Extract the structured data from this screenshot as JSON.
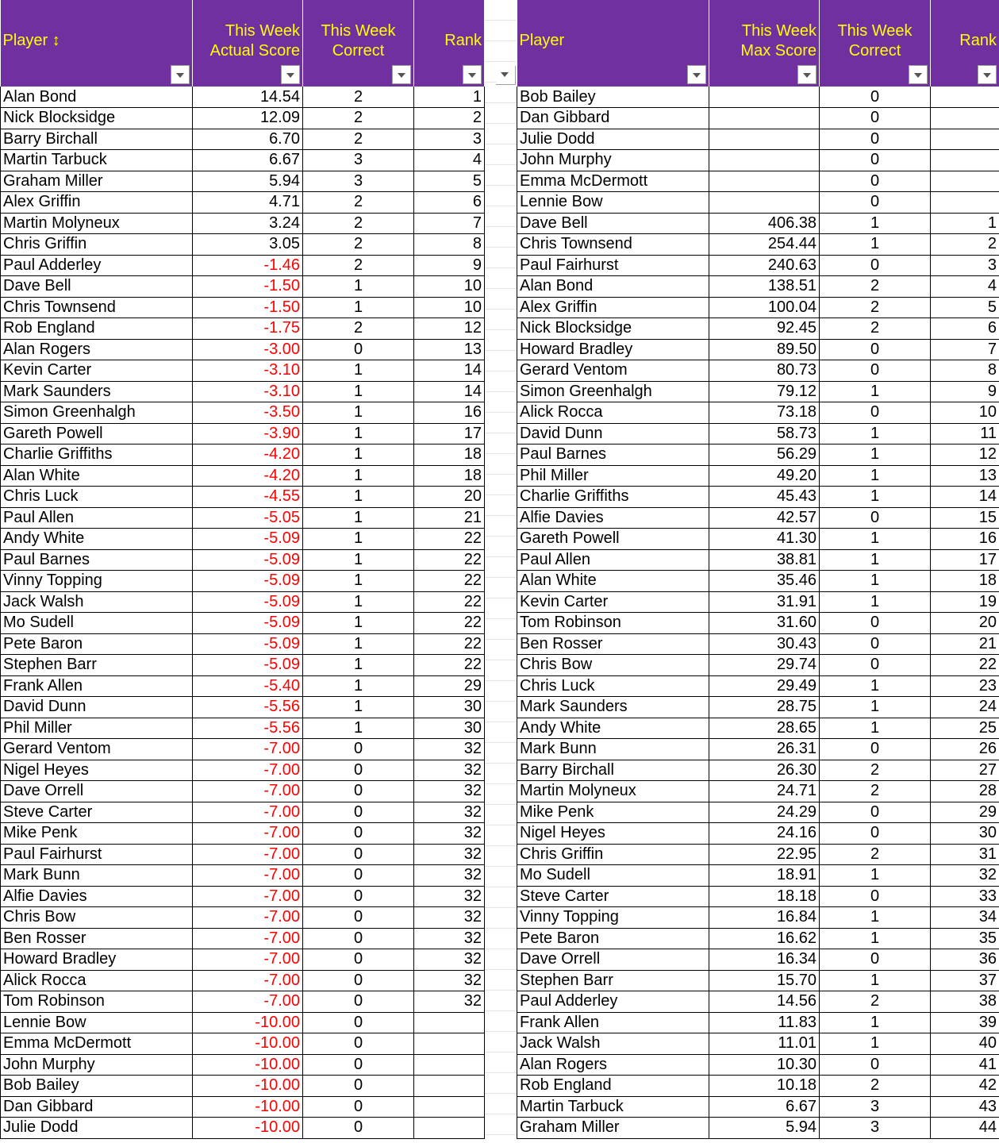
{
  "left_table": {
    "headers": {
      "player": "Player ↕",
      "score_line1": "This Week",
      "score_line2": "Actual Score",
      "correct_line1": "This Week",
      "correct_line2": "Correct",
      "rank": "Rank"
    },
    "rows": [
      {
        "player": "Alan Bond",
        "score": "14.54",
        "correct": "2",
        "rank": "1"
      },
      {
        "player": "Nick Blocksidge",
        "score": "12.09",
        "correct": "2",
        "rank": "2"
      },
      {
        "player": "Barry Birchall",
        "score": "6.70",
        "correct": "2",
        "rank": "3"
      },
      {
        "player": "Martin Tarbuck",
        "score": "6.67",
        "correct": "3",
        "rank": "4"
      },
      {
        "player": "Graham Miller",
        "score": "5.94",
        "correct": "3",
        "rank": "5"
      },
      {
        "player": "Alex Griffin",
        "score": "4.71",
        "correct": "2",
        "rank": "6"
      },
      {
        "player": "Martin Molyneux",
        "score": "3.24",
        "correct": "2",
        "rank": "7"
      },
      {
        "player": "Chris Griffin",
        "score": "3.05",
        "correct": "2",
        "rank": "8"
      },
      {
        "player": "Paul Adderley",
        "score": "-1.46",
        "correct": "2",
        "rank": "9"
      },
      {
        "player": "Dave Bell",
        "score": "-1.50",
        "correct": "1",
        "rank": "10"
      },
      {
        "player": "Chris Townsend",
        "score": "-1.50",
        "correct": "1",
        "rank": "10"
      },
      {
        "player": "Rob England",
        "score": "-1.75",
        "correct": "2",
        "rank": "12"
      },
      {
        "player": "Alan Rogers",
        "score": "-3.00",
        "correct": "0",
        "rank": "13"
      },
      {
        "player": "Kevin Carter",
        "score": "-3.10",
        "correct": "1",
        "rank": "14"
      },
      {
        "player": "Mark Saunders",
        "score": "-3.10",
        "correct": "1",
        "rank": "14"
      },
      {
        "player": "Simon Greenhalgh",
        "score": "-3.50",
        "correct": "1",
        "rank": "16"
      },
      {
        "player": "Gareth Powell",
        "score": "-3.90",
        "correct": "1",
        "rank": "17"
      },
      {
        "player": "Charlie Griffiths",
        "score": "-4.20",
        "correct": "1",
        "rank": "18"
      },
      {
        "player": "Alan White",
        "score": "-4.20",
        "correct": "1",
        "rank": "18"
      },
      {
        "player": "Chris Luck",
        "score": "-4.55",
        "correct": "1",
        "rank": "20"
      },
      {
        "player": "Paul Allen",
        "score": "-5.05",
        "correct": "1",
        "rank": "21"
      },
      {
        "player": "Andy White",
        "score": "-5.09",
        "correct": "1",
        "rank": "22"
      },
      {
        "player": "Paul Barnes",
        "score": "-5.09",
        "correct": "1",
        "rank": "22"
      },
      {
        "player": "Vinny Topping",
        "score": "-5.09",
        "correct": "1",
        "rank": "22"
      },
      {
        "player": "Jack Walsh",
        "score": "-5.09",
        "correct": "1",
        "rank": "22"
      },
      {
        "player": "Mo Sudell",
        "score": "-5.09",
        "correct": "1",
        "rank": "22"
      },
      {
        "player": "Pete Baron",
        "score": "-5.09",
        "correct": "1",
        "rank": "22"
      },
      {
        "player": "Stephen Barr",
        "score": "-5.09",
        "correct": "1",
        "rank": "22"
      },
      {
        "player": "Frank Allen",
        "score": "-5.40",
        "correct": "1",
        "rank": "29"
      },
      {
        "player": "David Dunn",
        "score": "-5.56",
        "correct": "1",
        "rank": "30"
      },
      {
        "player": "Phil Miller",
        "score": "-5.56",
        "correct": "1",
        "rank": "30"
      },
      {
        "player": "Gerard Ventom",
        "score": "-7.00",
        "correct": "0",
        "rank": "32"
      },
      {
        "player": "Nigel Heyes",
        "score": "-7.00",
        "correct": "0",
        "rank": "32"
      },
      {
        "player": "Dave Orrell",
        "score": "-7.00",
        "correct": "0",
        "rank": "32"
      },
      {
        "player": "Steve Carter",
        "score": "-7.00",
        "correct": "0",
        "rank": "32"
      },
      {
        "player": "Mike Penk",
        "score": "-7.00",
        "correct": "0",
        "rank": "32"
      },
      {
        "player": "Paul Fairhurst",
        "score": "-7.00",
        "correct": "0",
        "rank": "32"
      },
      {
        "player": "Mark Bunn",
        "score": "-7.00",
        "correct": "0",
        "rank": "32"
      },
      {
        "player": "Alfie Davies",
        "score": "-7.00",
        "correct": "0",
        "rank": "32"
      },
      {
        "player": "Chris Bow",
        "score": "-7.00",
        "correct": "0",
        "rank": "32"
      },
      {
        "player": "Ben Rosser",
        "score": "-7.00",
        "correct": "0",
        "rank": "32"
      },
      {
        "player": "Howard Bradley",
        "score": "-7.00",
        "correct": "0",
        "rank": "32"
      },
      {
        "player": "Alick Rocca",
        "score": "-7.00",
        "correct": "0",
        "rank": "32"
      },
      {
        "player": "Tom Robinson",
        "score": "-7.00",
        "correct": "0",
        "rank": "32"
      },
      {
        "player": "Lennie Bow",
        "score": "-10.00",
        "correct": "0",
        "rank": ""
      },
      {
        "player": "Emma McDermott",
        "score": "-10.00",
        "correct": "0",
        "rank": ""
      },
      {
        "player": "John Murphy",
        "score": "-10.00",
        "correct": "0",
        "rank": ""
      },
      {
        "player": "Bob Bailey",
        "score": "-10.00",
        "correct": "0",
        "rank": ""
      },
      {
        "player": "Dan Gibbard",
        "score": "-10.00",
        "correct": "0",
        "rank": ""
      },
      {
        "player": "Julie Dodd",
        "score": "-10.00",
        "correct": "0",
        "rank": ""
      }
    ]
  },
  "right_table": {
    "headers": {
      "player": "Player",
      "score_line1": "This Week",
      "score_line2": "Max Score",
      "correct_line1": "This Week",
      "correct_line2": "Correct",
      "rank": "Rank"
    },
    "rows": [
      {
        "player": "Bob Bailey",
        "score": "",
        "correct": "0",
        "rank": ""
      },
      {
        "player": "Dan Gibbard",
        "score": "",
        "correct": "0",
        "rank": ""
      },
      {
        "player": "Julie Dodd",
        "score": "",
        "correct": "0",
        "rank": ""
      },
      {
        "player": "John Murphy",
        "score": "",
        "correct": "0",
        "rank": ""
      },
      {
        "player": "Emma McDermott",
        "score": "",
        "correct": "0",
        "rank": ""
      },
      {
        "player": "Lennie Bow",
        "score": "",
        "correct": "0",
        "rank": ""
      },
      {
        "player": "Dave Bell",
        "score": "406.38",
        "correct": "1",
        "rank": "1"
      },
      {
        "player": "Chris Townsend",
        "score": "254.44",
        "correct": "1",
        "rank": "2"
      },
      {
        "player": "Paul Fairhurst",
        "score": "240.63",
        "correct": "0",
        "rank": "3"
      },
      {
        "player": "Alan Bond",
        "score": "138.51",
        "correct": "2",
        "rank": "4"
      },
      {
        "player": "Alex Griffin",
        "score": "100.04",
        "correct": "2",
        "rank": "5"
      },
      {
        "player": "Nick Blocksidge",
        "score": "92.45",
        "correct": "2",
        "rank": "6"
      },
      {
        "player": "Howard Bradley",
        "score": "89.50",
        "correct": "0",
        "rank": "7"
      },
      {
        "player": "Gerard Ventom",
        "score": "80.73",
        "correct": "0",
        "rank": "8"
      },
      {
        "player": "Simon Greenhalgh",
        "score": "79.12",
        "correct": "1",
        "rank": "9"
      },
      {
        "player": "Alick Rocca",
        "score": "73.18",
        "correct": "0",
        "rank": "10"
      },
      {
        "player": "David Dunn",
        "score": "58.73",
        "correct": "1",
        "rank": "11"
      },
      {
        "player": "Paul Barnes",
        "score": "56.29",
        "correct": "1",
        "rank": "12"
      },
      {
        "player": "Phil Miller",
        "score": "49.20",
        "correct": "1",
        "rank": "13"
      },
      {
        "player": "Charlie Griffiths",
        "score": "45.43",
        "correct": "1",
        "rank": "14"
      },
      {
        "player": "Alfie Davies",
        "score": "42.57",
        "correct": "0",
        "rank": "15"
      },
      {
        "player": "Gareth Powell",
        "score": "41.30",
        "correct": "1",
        "rank": "16"
      },
      {
        "player": "Paul Allen",
        "score": "38.81",
        "correct": "1",
        "rank": "17"
      },
      {
        "player": "Alan White",
        "score": "35.46",
        "correct": "1",
        "rank": "18"
      },
      {
        "player": "Kevin Carter",
        "score": "31.91",
        "correct": "1",
        "rank": "19"
      },
      {
        "player": "Tom Robinson",
        "score": "31.60",
        "correct": "0",
        "rank": "20"
      },
      {
        "player": "Ben Rosser",
        "score": "30.43",
        "correct": "0",
        "rank": "21"
      },
      {
        "player": "Chris Bow",
        "score": "29.74",
        "correct": "0",
        "rank": "22"
      },
      {
        "player": "Chris Luck",
        "score": "29.49",
        "correct": "1",
        "rank": "23"
      },
      {
        "player": "Mark Saunders",
        "score": "28.75",
        "correct": "1",
        "rank": "24"
      },
      {
        "player": "Andy White",
        "score": "28.65",
        "correct": "1",
        "rank": "25"
      },
      {
        "player": "Mark Bunn",
        "score": "26.31",
        "correct": "0",
        "rank": "26"
      },
      {
        "player": "Barry Birchall",
        "score": "26.30",
        "correct": "2",
        "rank": "27"
      },
      {
        "player": "Martin Molyneux",
        "score": "24.71",
        "correct": "2",
        "rank": "28"
      },
      {
        "player": "Mike Penk",
        "score": "24.29",
        "correct": "0",
        "rank": "29"
      },
      {
        "player": "Nigel Heyes",
        "score": "24.16",
        "correct": "0",
        "rank": "30"
      },
      {
        "player": "Chris Griffin",
        "score": "22.95",
        "correct": "2",
        "rank": "31"
      },
      {
        "player": "Mo Sudell",
        "score": "18.91",
        "correct": "1",
        "rank": "32"
      },
      {
        "player": "Steve Carter",
        "score": "18.18",
        "correct": "0",
        "rank": "33"
      },
      {
        "player": "Vinny Topping",
        "score": "16.84",
        "correct": "1",
        "rank": "34"
      },
      {
        "player": "Pete Baron",
        "score": "16.62",
        "correct": "1",
        "rank": "35"
      },
      {
        "player": "Dave Orrell",
        "score": "16.34",
        "correct": "0",
        "rank": "36"
      },
      {
        "player": "Stephen Barr",
        "score": "15.70",
        "correct": "1",
        "rank": "37"
      },
      {
        "player": "Paul Adderley",
        "score": "14.56",
        "correct": "2",
        "rank": "38"
      },
      {
        "player": "Frank Allen",
        "score": "11.83",
        "correct": "1",
        "rank": "39"
      },
      {
        "player": "Jack Walsh",
        "score": "11.01",
        "correct": "1",
        "rank": "40"
      },
      {
        "player": "Alan Rogers",
        "score": "10.30",
        "correct": "0",
        "rank": "41"
      },
      {
        "player": "Rob England",
        "score": "10.18",
        "correct": "2",
        "rank": "42"
      },
      {
        "player": "Martin Tarbuck",
        "score": "6.67",
        "correct": "3",
        "rank": "43"
      },
      {
        "player": "Graham Miller",
        "score": "5.94",
        "correct": "3",
        "rank": "44"
      }
    ]
  },
  "colors": {
    "header_bg": "#7030a0",
    "header_text": "#ffff00",
    "negative_value": "#ff0000",
    "gridline": "#000000"
  },
  "icons": {
    "filter": "chevron-down-icon"
  }
}
